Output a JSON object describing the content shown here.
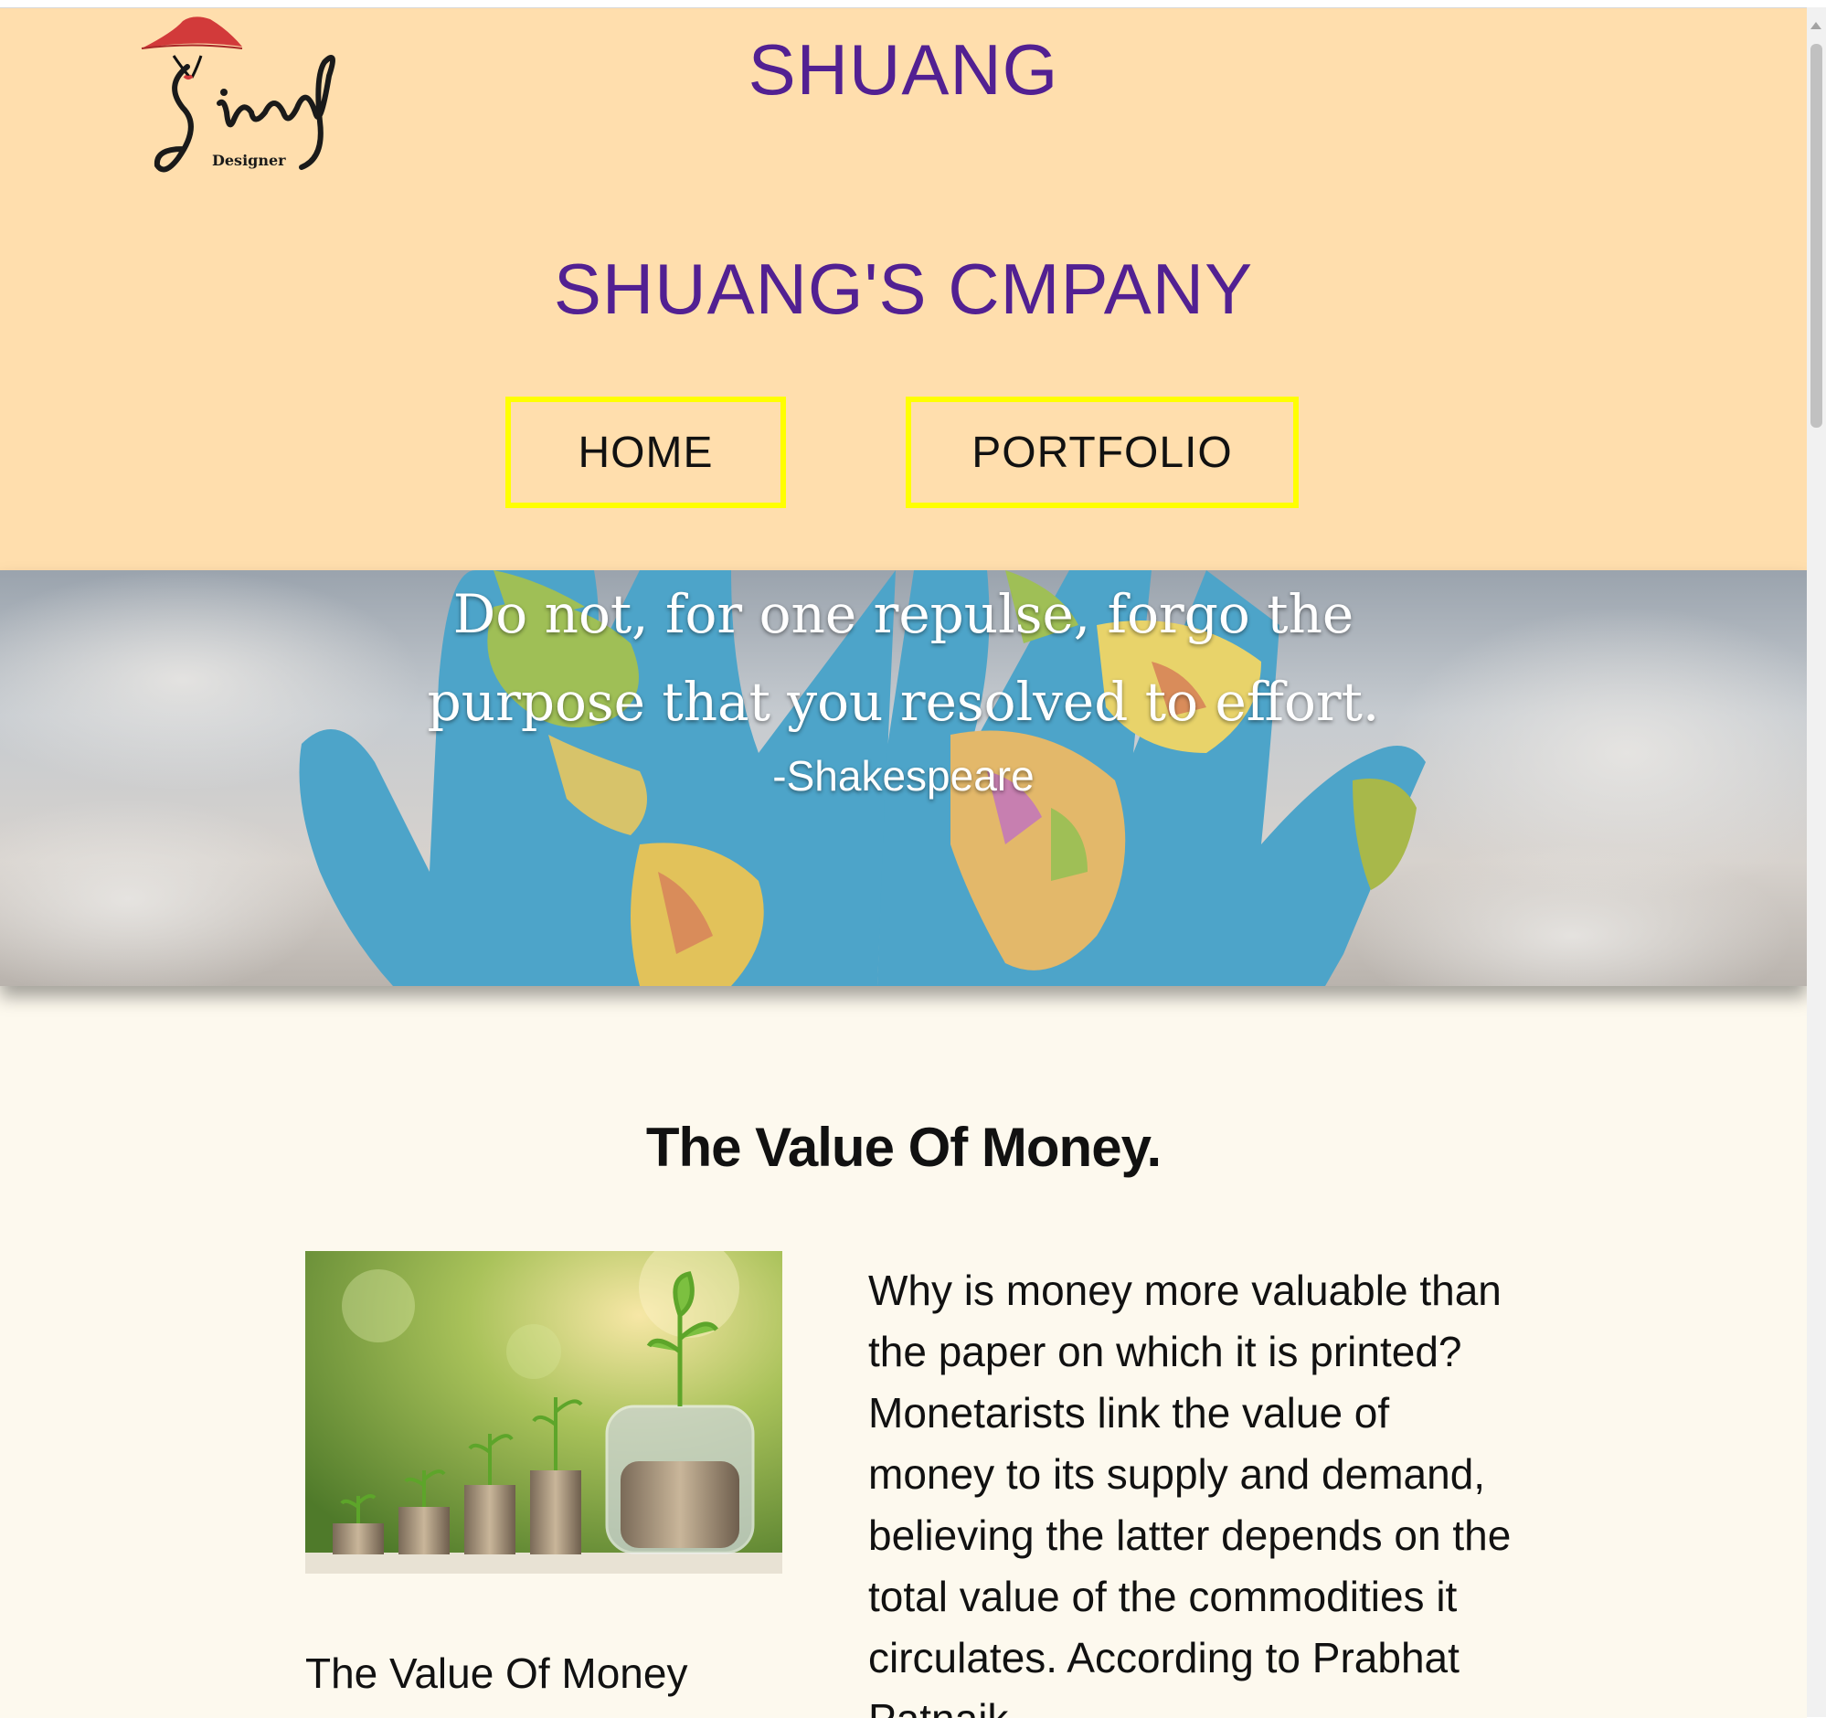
{
  "header": {
    "logo_text": "Siang",
    "logo_subtext": "Designer",
    "site_title": "SHUANG",
    "company_title": "SHUANG'S CMPANY",
    "nav": {
      "home_label": "HOME",
      "portfolio_label": "PORTFOLIO"
    }
  },
  "hero": {
    "quote_line1": "Do not, for one repulse, forgo the",
    "quote_line2": "purpose that you resolved to effort.",
    "author": "-Shakespeare"
  },
  "article": {
    "title": "The Value Of Money.",
    "image_caption": "The Value Of Money",
    "body": "Why is money more valuable than the paper on which it is printed? Monetarists link the value of money to its supply and demand, believing the latter depends on the total value of the commodities it circulates. According to Prabhat Patnaik"
  },
  "colors": {
    "header_bg": "#ffdead",
    "title_purple": "#522092",
    "nav_border": "#ffff00",
    "page_bg": "#fdf9ee"
  }
}
